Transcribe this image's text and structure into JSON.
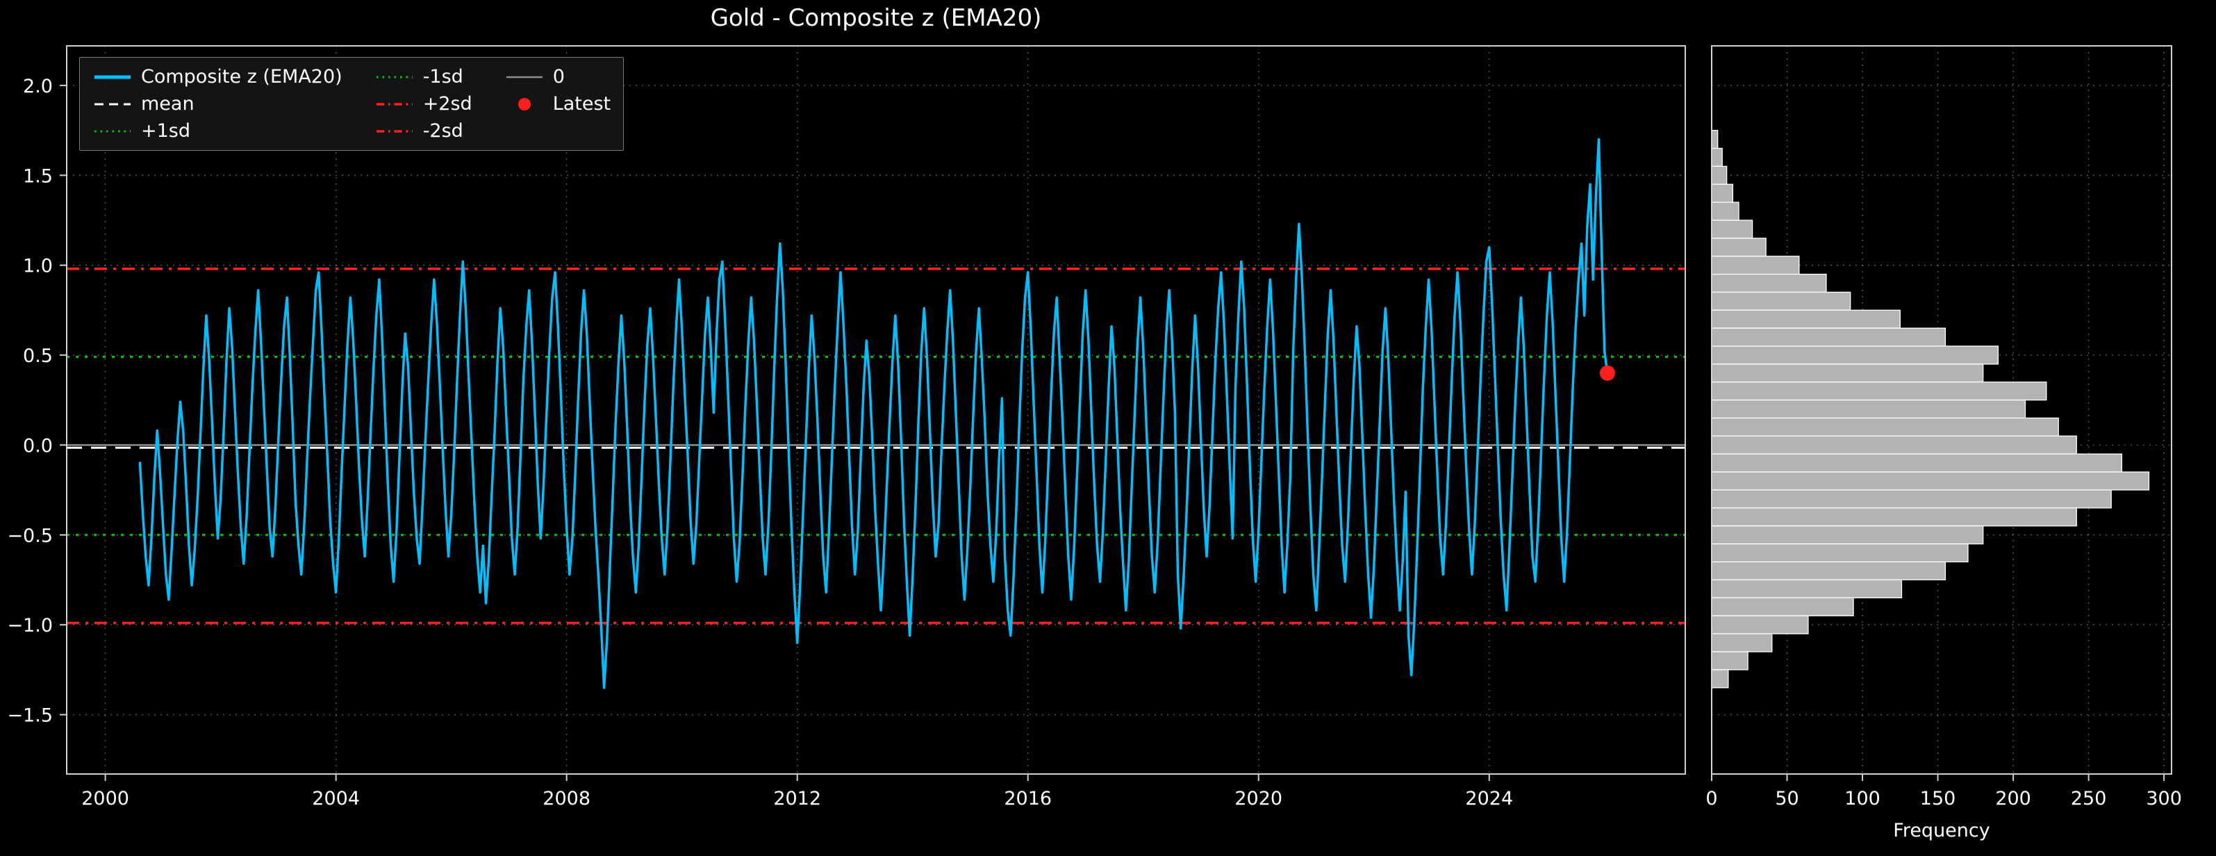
{
  "chart_data": {
    "type": "line",
    "title": "Gold - Composite z (EMA20)",
    "main": {
      "series_name": "Composite z (EMA20)",
      "color": "#00bfff",
      "x_start": 2000.6,
      "x_step": 0.05,
      "xlim": [
        1999.33,
        2027.4
      ],
      "ylim": [
        -1.83,
        2.22
      ],
      "xticks": [
        2000,
        2004,
        2008,
        2012,
        2016,
        2020,
        2024
      ],
      "xtick_labels": [
        "2000",
        "2004",
        "2008",
        "2012",
        "2016",
        "2020",
        "2024"
      ],
      "yticks": [
        2.0,
        1.5,
        1.0,
        0.5,
        0.0,
        -0.5,
        -1.0,
        -1.5
      ],
      "ytick_labels": [
        "2.0",
        "1.5",
        "1.0",
        "0.5",
        "0.0",
        "−0.5",
        "−1.0",
        "−1.5"
      ],
      "grid": true,
      "ref_lines": [
        {
          "label": "0",
          "value": 0.0,
          "color": "#909090",
          "style": "solid",
          "width": 2.5
        },
        {
          "label": "mean",
          "value": -0.015,
          "color": "#ffffff",
          "style": "dashed",
          "width": 3
        },
        {
          "label": "+1sd",
          "value": 0.49,
          "color": "#00cc00",
          "style": "dotted",
          "width": 3
        },
        {
          "label": "-1sd",
          "value": -0.5,
          "color": "#00cc00",
          "style": "dotted",
          "width": 3
        },
        {
          "label": "+2sd",
          "value": 0.98,
          "color": "#ff2222",
          "style": "dashdot",
          "width": 3.5
        },
        {
          "label": "-2sd",
          "value": -0.99,
          "color": "#ff2222",
          "style": "dashdot",
          "width": 3.5
        }
      ],
      "latest": {
        "label": "Latest",
        "x": 2026.05,
        "y": 0.4,
        "color": "#ff1f1f"
      },
      "values": [
        -0.1,
        -0.38,
        -0.62,
        -0.78,
        -0.52,
        -0.18,
        0.08,
        -0.16,
        -0.44,
        -0.72,
        -0.86,
        -0.58,
        -0.28,
        0.02,
        0.24,
        0.08,
        -0.22,
        -0.56,
        -0.78,
        -0.58,
        -0.3,
        0.06,
        0.42,
        0.72,
        0.48,
        0.14,
        -0.22,
        -0.52,
        -0.3,
        0.06,
        0.46,
        0.76,
        0.54,
        0.18,
        -0.16,
        -0.46,
        -0.66,
        -0.4,
        -0.04,
        0.32,
        0.62,
        0.86,
        0.58,
        0.22,
        -0.12,
        -0.46,
        -0.62,
        -0.34,
        0.02,
        0.36,
        0.66,
        0.82,
        0.5,
        0.1,
        -0.32,
        -0.56,
        -0.72,
        -0.44,
        -0.08,
        0.26,
        0.56,
        0.86,
        0.96,
        0.64,
        0.28,
        -0.06,
        -0.42,
        -0.66,
        -0.82,
        -0.52,
        -0.14,
        0.22,
        0.56,
        0.82,
        0.58,
        0.24,
        -0.12,
        -0.42,
        -0.62,
        -0.3,
        0.06,
        0.42,
        0.72,
        0.92,
        0.6,
        0.18,
        -0.22,
        -0.56,
        -0.76,
        -0.48,
        -0.08,
        0.32,
        0.62,
        0.44,
        0.08,
        -0.26,
        -0.52,
        -0.66,
        -0.34,
        0.02,
        0.36,
        0.66,
        0.92,
        0.68,
        0.34,
        -0.02,
        -0.36,
        -0.62,
        -0.38,
        -0.04,
        0.36,
        0.72,
        1.02,
        0.76,
        0.38,
        0.04,
        -0.32,
        -0.62,
        -0.82,
        -0.56,
        -0.88,
        -0.64,
        -0.28,
        0.06,
        0.46,
        0.76,
        0.54,
        0.18,
        -0.16,
        -0.52,
        -0.72,
        -0.46,
        -0.06,
        0.36,
        0.66,
        0.86,
        0.56,
        0.18,
        -0.22,
        -0.52,
        -0.22,
        0.16,
        0.52,
        0.82,
        0.96,
        0.66,
        0.28,
        -0.12,
        -0.46,
        -0.72,
        -0.52,
        -0.16,
        0.26,
        0.62,
        0.86,
        0.62,
        0.24,
        -0.12,
        -0.46,
        -0.72,
        -1.02,
        -1.35,
        -1.08,
        -0.68,
        -0.28,
        0.12,
        0.46,
        0.72,
        0.46,
        0.1,
        -0.32,
        -0.62,
        -0.82,
        -0.56,
        -0.18,
        0.22,
        0.56,
        0.76,
        0.48,
        0.14,
        -0.22,
        -0.52,
        -0.72,
        -0.46,
        -0.08,
        0.32,
        0.66,
        0.92,
        0.64,
        0.28,
        -0.06,
        -0.42,
        -0.66,
        -0.44,
        -0.08,
        0.26,
        0.62,
        0.82,
        0.54,
        0.18,
        0.62,
        0.92,
        1.02,
        0.68,
        0.28,
        -0.12,
        -0.52,
        -0.76,
        -0.54,
        -0.18,
        0.22,
        0.56,
        0.82,
        0.58,
        0.22,
        -0.16,
        -0.52,
        -0.72,
        -0.44,
        -0.04,
        0.42,
        0.82,
        1.12,
        0.86,
        0.44,
        -0.02,
        -0.46,
        -0.82,
        -1.1,
        -0.78,
        -0.38,
        0.02,
        0.42,
        0.72,
        0.48,
        0.14,
        -0.26,
        -0.62,
        -0.82,
        -0.48,
        -0.08,
        0.32,
        0.66,
        0.96,
        0.68,
        0.34,
        -0.06,
        -0.46,
        -0.72,
        -0.48,
        -0.08,
        0.32,
        0.58,
        0.38,
        0.04,
        -0.36,
        -0.66,
        -0.92,
        -0.62,
        -0.24,
        0.12,
        0.46,
        0.72,
        0.44,
        0.04,
        -0.42,
        -0.76,
        -1.06,
        -0.74,
        -0.34,
        0.12,
        0.52,
        0.76,
        0.48,
        0.08,
        -0.32,
        -0.62,
        -0.44,
        -0.04,
        0.32,
        0.62,
        0.86,
        0.58,
        0.18,
        -0.22,
        -0.62,
        -0.86,
        -0.58,
        -0.24,
        0.16,
        0.52,
        0.76,
        0.48,
        0.14,
        -0.26,
        -0.56,
        -0.76,
        -0.48,
        -0.08,
        0.26,
        -0.62,
        -0.92,
        -1.06,
        -0.74,
        -0.34,
        0.12,
        0.52,
        0.82,
        0.96,
        0.64,
        0.24,
        -0.16,
        -0.56,
        -0.82,
        -0.54,
        -0.14,
        0.26,
        0.62,
        0.82,
        0.48,
        0.14,
        -0.26,
        -0.62,
        -0.86,
        -0.58,
        -0.18,
        0.22,
        0.62,
        0.86,
        0.58,
        0.18,
        -0.22,
        -0.56,
        -0.76,
        -0.48,
        -0.08,
        0.32,
        0.66,
        0.44,
        0.04,
        -0.36,
        -0.66,
        -0.92,
        -0.64,
        -0.24,
        0.16,
        0.56,
        0.82,
        0.54,
        0.14,
        -0.26,
        -0.62,
        -0.82,
        -0.54,
        -0.14,
        0.26,
        0.62,
        0.86,
        0.58,
        0.18,
        -0.72,
        -1.02,
        -0.74,
        -0.38,
        0.02,
        0.42,
        0.72,
        0.44,
        0.04,
        -0.36,
        -0.62,
        -0.34,
        0.06,
        0.46,
        0.76,
        0.96,
        0.68,
        0.28,
        -0.12,
        -0.52,
        0.32,
        0.72,
        1.02,
        0.76,
        0.34,
        -0.12,
        -0.52,
        -0.76,
        -0.48,
        -0.08,
        0.32,
        0.66,
        0.92,
        0.64,
        0.24,
        -0.16,
        -0.56,
        -0.82,
        -0.54,
        -0.18,
        0.52,
        0.92,
        1.23,
        0.94,
        0.54,
        0.08,
        -0.36,
        -0.72,
        -0.92,
        -0.58,
        -0.18,
        0.22,
        0.62,
        0.86,
        0.58,
        0.18,
        -0.22,
        -0.56,
        -0.76,
        -0.44,
        -0.04,
        0.36,
        0.66,
        0.44,
        0.04,
        -0.36,
        -0.72,
        -0.96,
        -0.68,
        -0.28,
        0.12,
        0.52,
        0.76,
        0.48,
        0.08,
        -0.32,
        -0.66,
        -0.92,
        -0.64,
        -0.26,
        -1.06,
        -1.28,
        -0.98,
        -0.58,
        -0.14,
        0.32,
        0.66,
        0.92,
        0.64,
        0.24,
        -0.16,
        -0.52,
        -0.72,
        -0.44,
        -0.04,
        0.36,
        0.72,
        0.96,
        0.68,
        0.28,
        -0.12,
        -0.46,
        -0.72,
        -0.44,
        -0.04,
        0.36,
        0.72,
        1.02,
        1.1,
        0.78,
        0.38,
        -0.02,
        -0.42,
        -0.72,
        -0.92,
        -0.58,
        -0.18,
        0.22,
        0.56,
        0.82,
        0.54,
        0.14,
        -0.26,
        -0.62,
        -0.76,
        -0.44,
        -0.04,
        0.36,
        0.72,
        0.96,
        0.68,
        0.28,
        -0.12,
        -0.52,
        -0.76,
        -0.48,
        -0.08,
        0.32,
        0.66,
        0.92,
        1.12,
        0.72,
        1.22,
        1.45,
        0.92,
        1.38,
        1.7,
        1.08,
        0.52,
        0.4
      ]
    },
    "histogram": {
      "type": "barh",
      "xlabel": "Frequency",
      "xticks": [
        0,
        50,
        100,
        150,
        200,
        250,
        300
      ],
      "xtick_labels": [
        "0",
        "50",
        "100",
        "150",
        "200",
        "250",
        "300"
      ],
      "xlim": [
        0,
        305
      ],
      "bin_width": 0.1,
      "bar_color": "#b3b3b3",
      "bar_edge": "#ffffff",
      "bin_centers": [
        1.7,
        1.6,
        1.5,
        1.4,
        1.3,
        1.2,
        1.1,
        1.0,
        0.9,
        0.8,
        0.7,
        0.6,
        0.5,
        0.4,
        0.3,
        0.2,
        0.1,
        0.0,
        -0.1,
        -0.2,
        -0.3,
        -0.4,
        -0.5,
        -0.6,
        -0.7,
        -0.8,
        -0.9,
        -1.0,
        -1.1,
        -1.2,
        -1.3
      ],
      "counts": [
        4,
        7,
        10,
        14,
        18,
        27,
        36,
        58,
        76,
        92,
        125,
        155,
        190,
        180,
        222,
        208,
        230,
        242,
        272,
        290,
        265,
        242,
        180,
        170,
        155,
        126,
        94,
        64,
        40,
        24,
        11
      ]
    },
    "legend": {
      "columns": 3,
      "entries": [
        {
          "label": "Composite z (EMA20)",
          "swatch": "line",
          "dash": "solid",
          "color": "#00bfff",
          "lw": 5
        },
        {
          "label": "mean",
          "swatch": "line",
          "dash": "dashed",
          "color": "#ffffff",
          "lw": 3
        },
        {
          "label": "+1sd",
          "swatch": "line",
          "dash": "dotted",
          "color": "#00cc00",
          "lw": 3
        },
        {
          "label": "-1sd",
          "swatch": "line",
          "dash": "dotted",
          "color": "#00cc00",
          "lw": 3
        },
        {
          "label": "+2sd",
          "swatch": "line",
          "dash": "dashdot",
          "color": "#ff2222",
          "lw": 3.5
        },
        {
          "label": "-2sd",
          "swatch": "line",
          "dash": "dashdot",
          "color": "#ff2222",
          "lw": 3.5
        },
        {
          "label": "0",
          "swatch": "line",
          "dash": "solid",
          "color": "#909090",
          "lw": 2.5
        },
        {
          "label": "Latest",
          "swatch": "dot",
          "dash": "solid",
          "color": "#ff1f1f",
          "lw": 0
        }
      ]
    },
    "style": {
      "background": "#000000",
      "text_color": "#ffffff",
      "spine_color": "#cfcfcf",
      "grid_color": "rgba(255,255,255,0.35)"
    }
  }
}
